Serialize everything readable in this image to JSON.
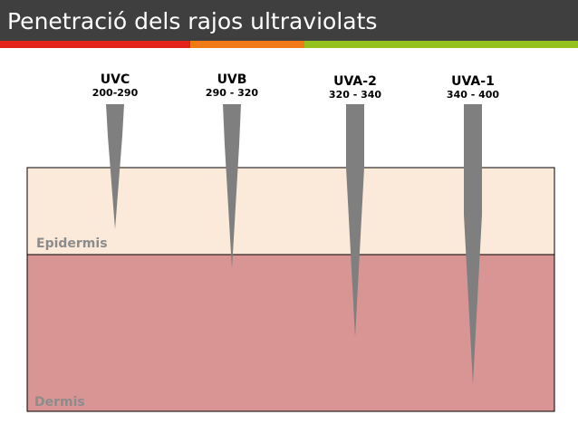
{
  "header": {
    "title": "Penetració dels rajos ultraviolats"
  },
  "layers": [
    {
      "label": "Epidermis"
    },
    {
      "label": "Dermis"
    }
  ],
  "rays": [
    {
      "name": "UVC",
      "range": "200-290"
    },
    {
      "name": "UVB",
      "range": "290 - 320"
    },
    {
      "name": "UVA-2",
      "range": "320 - 340"
    },
    {
      "name": "UVA-1",
      "range": "340 - 400"
    }
  ]
}
